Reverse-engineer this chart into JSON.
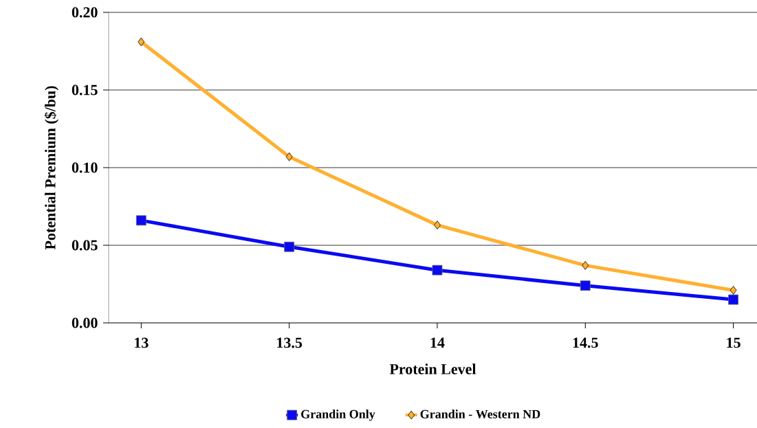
{
  "chart_data": {
    "type": "line",
    "xlabel": "Protein Level",
    "ylabel": "Potential Premium ($/bu)",
    "x": [
      13,
      13.5,
      14,
      14.5,
      15
    ],
    "series": [
      {
        "name": "Grandin Only",
        "color": "#0a0af0",
        "marker": "square",
        "values": [
          0.066,
          0.049,
          0.034,
          0.024,
          0.015
        ]
      },
      {
        "name": "Grandin - Western ND",
        "color": "#ffb032",
        "marker": "diamond",
        "values": [
          0.181,
          0.107,
          0.063,
          0.037,
          0.021
        ]
      }
    ],
    "xlim": [
      12.89,
      15.08
    ],
    "xticks": [
      13,
      13.5,
      14,
      14.5,
      15
    ],
    "ylim": [
      0,
      0.2
    ],
    "yticks": [
      {
        "value": 0,
        "label": "0.00"
      },
      {
        "value": 0.05,
        "label": "0.05"
      },
      {
        "value": 0.1,
        "label": "0.10"
      },
      {
        "value": 0.15,
        "label": "0.15"
      },
      {
        "value": 0.2,
        "label": "0.20"
      }
    ],
    "grid": "y",
    "legend": "bottom",
    "line_style": "solid"
  }
}
